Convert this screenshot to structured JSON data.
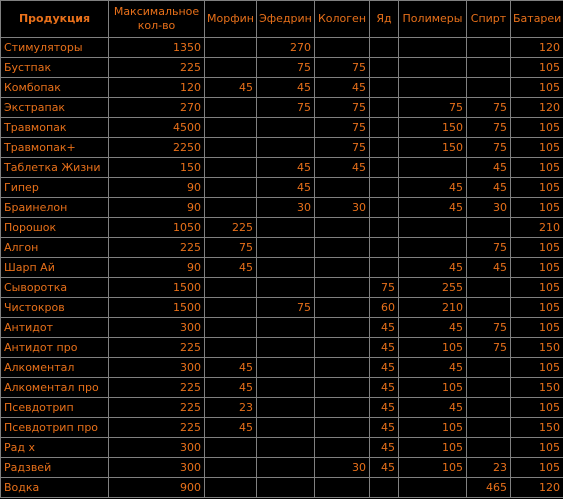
{
  "table": {
    "headers": [
      "Продукция",
      "Максимальное кол-во",
      "Морфин",
      "Эфедрин",
      "Кологен",
      "Яд",
      "Полимеры",
      "Спирт",
      "Батареи"
    ],
    "rows": [
      [
        "Стимуляторы",
        "1350",
        "",
        "270",
        "",
        "",
        "",
        "",
        "120"
      ],
      [
        "Бустпак",
        "225",
        "",
        "75",
        "75",
        "",
        "",
        "",
        "105"
      ],
      [
        "Комбопак",
        "120",
        "45",
        "45",
        "45",
        "",
        "",
        "",
        "105"
      ],
      [
        "Экстрапак",
        "270",
        "",
        "75",
        "75",
        "",
        "75",
        "75",
        "120"
      ],
      [
        "Травмопак",
        "4500",
        "",
        "",
        "75",
        "",
        "150",
        "75",
        "105"
      ],
      [
        "Травмопак+",
        "2250",
        "",
        "",
        "75",
        "",
        "150",
        "75",
        "105"
      ],
      [
        "Таблетка Жизни",
        "150",
        "",
        "45",
        "45",
        "",
        "",
        "45",
        "105"
      ],
      [
        "Гипер",
        "90",
        "",
        "45",
        "",
        "",
        "45",
        "45",
        "105"
      ],
      [
        "Браинелон",
        "90",
        "",
        "30",
        "30",
        "",
        "45",
        "30",
        "105"
      ],
      [
        "Порошок",
        "1050",
        "225",
        "",
        "",
        "",
        "",
        "",
        "210"
      ],
      [
        "Алгон",
        "225",
        "75",
        "",
        "",
        "",
        "",
        "75",
        "105"
      ],
      [
        "Шарп Ай",
        "90",
        "45",
        "",
        "",
        "",
        "45",
        "45",
        "105"
      ],
      [
        "Сыворотка",
        "1500",
        "",
        "",
        "",
        "75",
        "255",
        "",
        "105"
      ],
      [
        "Чистокров",
        "1500",
        "",
        "75",
        "",
        "60",
        "210",
        "",
        "105"
      ],
      [
        "Антидот",
        "300",
        "",
        "",
        "",
        "45",
        "45",
        "75",
        "105"
      ],
      [
        "Антидот про",
        "225",
        "",
        "",
        "",
        "45",
        "105",
        "75",
        "150"
      ],
      [
        "Алкоментал",
        "300",
        "45",
        "",
        "",
        "45",
        "45",
        "",
        "105"
      ],
      [
        "Алкоментал про",
        "225",
        "45",
        "",
        "",
        "45",
        "105",
        "",
        "150"
      ],
      [
        "Псевдотрип",
        "225",
        "23",
        "",
        "",
        "45",
        "45",
        "",
        "105"
      ],
      [
        "Псевдотрип про",
        "225",
        "45",
        "",
        "",
        "45",
        "105",
        "",
        "150"
      ],
      [
        "Рад х",
        "300",
        "",
        "",
        "",
        "45",
        "105",
        "",
        "105"
      ],
      [
        "Радзвей",
        "300",
        "",
        "",
        "30",
        "45",
        "105",
        "23",
        "105"
      ],
      [
        "Водка",
        "900",
        "",
        "",
        "",
        "",
        "",
        "465",
        "120"
      ]
    ]
  },
  "colors": {
    "text": "#e8701a",
    "background": "#000000",
    "border": "#808080"
  }
}
